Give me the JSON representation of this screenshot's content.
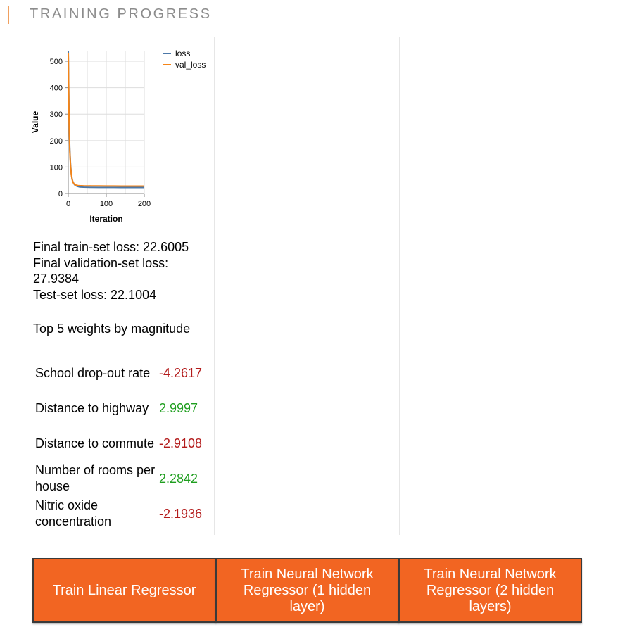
{
  "header": {
    "title": "TRAINING PROGRESS",
    "accent_color": "#f0a060"
  },
  "chart_data": {
    "type": "line",
    "xlabel": "Iteration",
    "ylabel": "Value",
    "xlim": [
      0,
      200
    ],
    "ylim": [
      0,
      540
    ],
    "x_ticks": [
      0,
      100,
      200
    ],
    "y_ticks": [
      0,
      100,
      200,
      300,
      400,
      500
    ],
    "grid": true,
    "legend_position": "top-right",
    "series": [
      {
        "name": "loss",
        "color": "#4c78a8",
        "x": [
          0,
          2,
          4,
          6,
          8,
          10,
          12,
          15,
          18,
          22,
          26,
          30,
          40,
          60,
          80,
          100,
          120,
          140,
          160,
          180,
          200
        ],
        "values": [
          540,
          300,
          170,
          110,
          75,
          55,
          45,
          36,
          31,
          28,
          26,
          24.5,
          23.8,
          23.2,
          23,
          22.9,
          22.8,
          22.7,
          22.7,
          22.6,
          22.6
        ]
      },
      {
        "name": "val_loss",
        "color": "#f58518",
        "x": [
          0,
          2,
          4,
          6,
          8,
          10,
          12,
          15,
          18,
          22,
          26,
          30,
          40,
          60,
          80,
          100,
          120,
          140,
          160,
          180,
          200
        ],
        "values": [
          530,
          280,
          160,
          105,
          72,
          54,
          44,
          37,
          33,
          31,
          30,
          29.5,
          29,
          28.7,
          28.5,
          28.3,
          28.2,
          28.1,
          28,
          27.95,
          27.94
        ]
      }
    ]
  },
  "losses": {
    "train": "Final train-set loss: 22.6005",
    "validation": "Final validation-set loss: 27.9384",
    "test": "Test-set loss: 22.1004"
  },
  "weights": {
    "heading": "Top 5 weights by magnitude",
    "negative_color": "#b31b1b",
    "positive_color": "#1f9e1f",
    "items": [
      {
        "name": "School drop-out rate",
        "value": "-4.2617"
      },
      {
        "name": "Distance to highway",
        "value": "2.9997"
      },
      {
        "name": "Distance to commute",
        "value": "-2.9108"
      },
      {
        "name": "Number of rooms per house",
        "value": "2.2842"
      },
      {
        "name": "Nitric oxide concentration",
        "value": "-2.1936"
      }
    ]
  },
  "buttons": {
    "color": "#f26522",
    "linear": "Train Linear Regressor",
    "nn1": "Train Neural Network Regressor (1 hidden layer)",
    "nn2": "Train Neural Network Regressor (2 hidden layers)"
  }
}
